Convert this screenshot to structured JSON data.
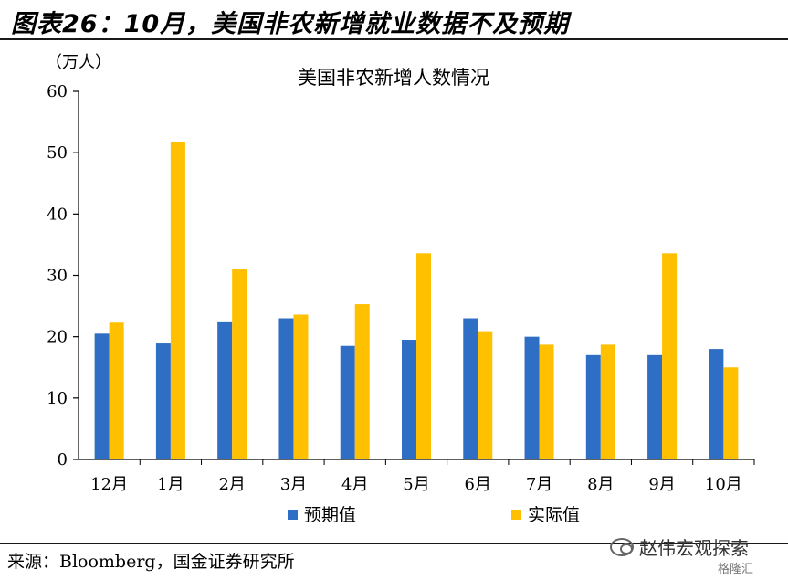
{
  "header": {
    "title": "图表26：10月，美国非农新增就业数据不及预期"
  },
  "chart_data": {
    "type": "bar",
    "title": "美国非农新增人数情况",
    "unit_label": "（万人）",
    "xlabel": "",
    "ylabel": "",
    "ylim": [
      0,
      60
    ],
    "yticks": [
      0,
      10,
      20,
      30,
      40,
      50,
      60
    ],
    "grid": false,
    "legend_position": "bottom",
    "categories": [
      "12月",
      "1月",
      "2月",
      "3月",
      "4月",
      "5月",
      "6月",
      "7月",
      "8月",
      "9月",
      "10月"
    ],
    "series": [
      {
        "name": "预期值",
        "color": "#2E6EC4",
        "values": [
          20.5,
          18.9,
          22.5,
          23.0,
          18.5,
          19.5,
          23.0,
          20.0,
          17.0,
          17.0,
          18.0
        ]
      },
      {
        "name": "实际值",
        "color": "#FFC000",
        "values": [
          22.3,
          51.7,
          31.1,
          23.6,
          25.3,
          33.6,
          20.9,
          18.7,
          18.7,
          33.6,
          15.0
        ]
      }
    ]
  },
  "footer": {
    "source": "来源：Bloomberg，国金证券研究所",
    "watermark": "赵伟宏观探索",
    "watermark_sub": "格隆汇"
  }
}
